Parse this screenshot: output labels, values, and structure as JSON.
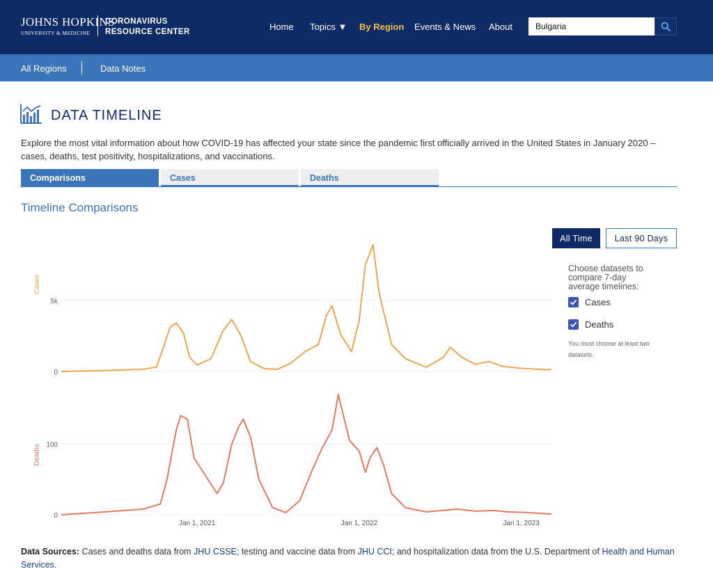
{
  "header": {
    "logo_line1": "JOHNS HOPKINS",
    "logo_line2": "UNIVERSITY & MEDICINE",
    "site_line1": "CORONAVIRUS",
    "site_line2": "RESOURCE CENTER",
    "nav": [
      "Home",
      "Topics ▼",
      "By Region",
      "Events & News",
      "About"
    ],
    "search_value": "Bulgaria"
  },
  "subnav": [
    "All Regions",
    "Data Notes"
  ],
  "page": {
    "title": "DATA TIMELINE",
    "intro": "Explore the most vital information about how COVID-19 has affected your state since the pandemic first officially arrived in the United States in January 2020 – cases, deaths, test positivity, hospitalizations, and vaccinations.",
    "tabs": [
      "Comparisons",
      "Cases",
      "Deaths"
    ],
    "section_title": "Timeline Comparisons"
  },
  "controls": {
    "all_time": "All Time",
    "last_90": "Last 90 Days",
    "choose_text": "Choose datasets to compare 7-day average timelines:",
    "datasets": [
      "Cases",
      "Deaths"
    ],
    "note": "You must choose at least two datasets."
  },
  "colors": {
    "cases": "#eda54f",
    "deaths": "#e27a60",
    "navy": "#0f2b67",
    "blue": "#3b74b9"
  },
  "chart_data": {
    "type": "line",
    "x_ticks": [
      "Jan 1, 2021",
      "Jan 1, 2022",
      "Jan 1, 2023"
    ],
    "panels": [
      {
        "name": "Cases",
        "ylabel": "Cases",
        "y_ticks": [
          {
            "value": 0,
            "label": "0"
          },
          {
            "value": 5000,
            "label": "5k"
          }
        ],
        "ylim": [
          0,
          9000
        ],
        "points": [
          [
            "2020-03-01",
            0
          ],
          [
            "2020-06-01",
            60
          ],
          [
            "2020-09-01",
            150
          ],
          [
            "2020-10-01",
            300
          ],
          [
            "2020-10-15",
            1500
          ],
          [
            "2020-11-01",
            3100
          ],
          [
            "2020-11-15",
            3400
          ],
          [
            "2020-12-01",
            2700
          ],
          [
            "2020-12-15",
            1000
          ],
          [
            "2021-01-01",
            450
          ],
          [
            "2021-02-01",
            900
          ],
          [
            "2021-03-01",
            2900
          ],
          [
            "2021-03-20",
            3650
          ],
          [
            "2021-04-10",
            2500
          ],
          [
            "2021-05-01",
            700
          ],
          [
            "2021-06-01",
            200
          ],
          [
            "2021-07-01",
            150
          ],
          [
            "2021-08-01",
            600
          ],
          [
            "2021-09-01",
            1400
          ],
          [
            "2021-10-01",
            1900
          ],
          [
            "2021-10-20",
            4000
          ],
          [
            "2021-11-01",
            4600
          ],
          [
            "2021-11-20",
            2600
          ],
          [
            "2021-12-15",
            1400
          ],
          [
            "2022-01-01",
            3600
          ],
          [
            "2022-01-15",
            7500
          ],
          [
            "2022-02-01",
            8900
          ],
          [
            "2022-02-15",
            5500
          ],
          [
            "2022-03-15",
            1900
          ],
          [
            "2022-04-15",
            900
          ],
          [
            "2022-06-01",
            300
          ],
          [
            "2022-07-10",
            1000
          ],
          [
            "2022-07-25",
            1700
          ],
          [
            "2022-08-20",
            1000
          ],
          [
            "2022-09-20",
            500
          ],
          [
            "2022-10-20",
            700
          ],
          [
            "2022-11-20",
            350
          ],
          [
            "2023-01-01",
            220
          ],
          [
            "2023-03-01",
            120
          ],
          [
            "2023-03-10",
            150
          ]
        ]
      },
      {
        "name": "Deaths",
        "ylabel": "Deaths",
        "y_ticks": [
          {
            "value": 0,
            "label": "0"
          },
          {
            "value": 100,
            "label": "100"
          }
        ],
        "ylim": [
          0,
          175
        ],
        "points": [
          [
            "2020-03-01",
            0
          ],
          [
            "2020-07-01",
            5
          ],
          [
            "2020-09-01",
            8
          ],
          [
            "2020-10-10",
            15
          ],
          [
            "2020-10-25",
            50
          ],
          [
            "2020-11-15",
            120
          ],
          [
            "2020-11-25",
            140
          ],
          [
            "2020-12-10",
            135
          ],
          [
            "2020-12-25",
            80
          ],
          [
            "2021-01-15",
            60
          ],
          [
            "2021-02-15",
            30
          ],
          [
            "2021-03-01",
            45
          ],
          [
            "2021-03-20",
            100
          ],
          [
            "2021-04-05",
            125
          ],
          [
            "2021-04-15",
            135
          ],
          [
            "2021-05-01",
            110
          ],
          [
            "2021-05-20",
            50
          ],
          [
            "2021-06-20",
            10
          ],
          [
            "2021-07-20",
            3
          ],
          [
            "2021-08-20",
            20
          ],
          [
            "2021-09-15",
            60
          ],
          [
            "2021-10-10",
            95
          ],
          [
            "2021-11-01",
            120
          ],
          [
            "2021-11-15",
            170
          ],
          [
            "2021-12-10",
            105
          ],
          [
            "2022-01-01",
            90
          ],
          [
            "2022-01-15",
            60
          ],
          [
            "2022-01-25",
            80
          ],
          [
            "2022-02-10",
            95
          ],
          [
            "2022-02-25",
            70
          ],
          [
            "2022-03-15",
            30
          ],
          [
            "2022-04-15",
            10
          ],
          [
            "2022-06-01",
            4
          ],
          [
            "2022-08-10",
            8
          ],
          [
            "2022-09-20",
            5
          ],
          [
            "2022-11-01",
            6
          ],
          [
            "2022-12-01",
            4
          ],
          [
            "2023-01-15",
            3
          ],
          [
            "2023-03-10",
            1
          ]
        ]
      }
    ]
  },
  "footer": {
    "label": "Data Sources:",
    "t1": " Cases and deaths data from ",
    "l1": "JHU CSSE",
    "t2": "; testing and vaccine data from ",
    "l2": "JHU CCI",
    "t3": "; and hospitalization data from the U.S. Department of ",
    "l3": "Health and Human Services",
    "t4": "."
  }
}
